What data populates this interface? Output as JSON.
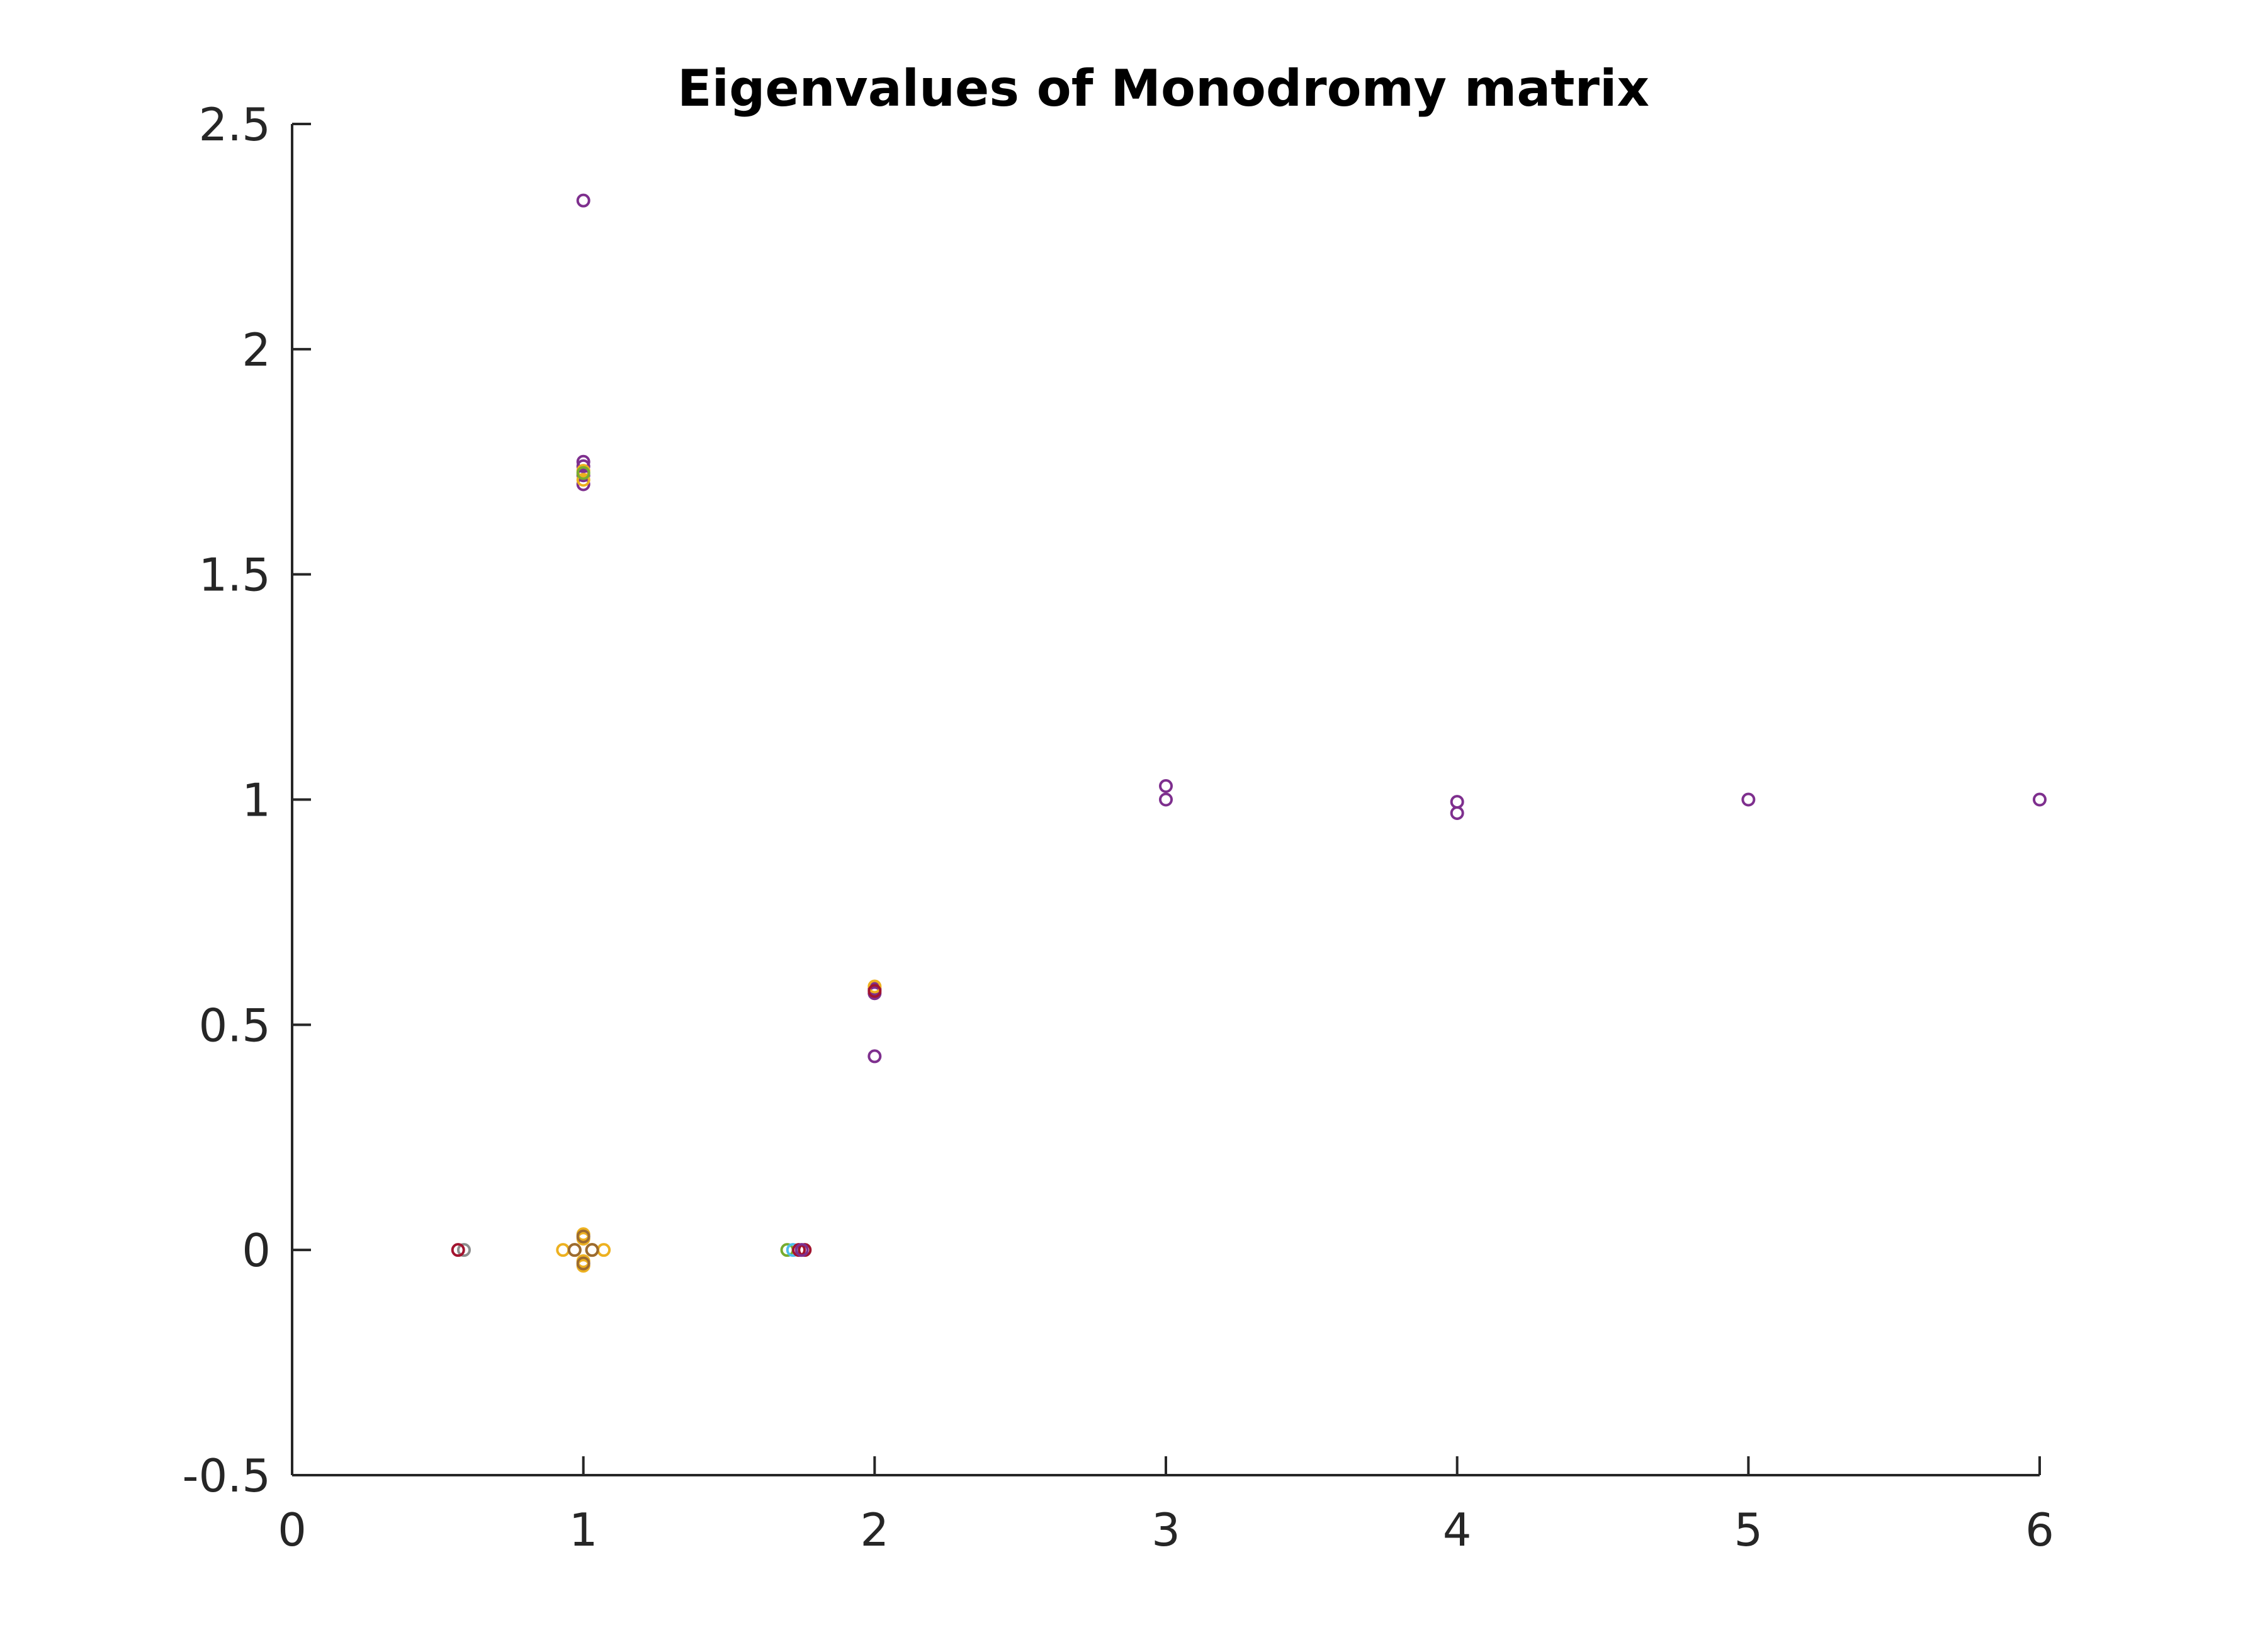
{
  "chart_data": {
    "type": "scatter",
    "title": "Eigenvalues of Monodromy matrix",
    "xlabel": "",
    "ylabel": "",
    "xlim": [
      0,
      6
    ],
    "ylim": [
      -0.5,
      2.5
    ],
    "grid": false,
    "legend": "none",
    "xticks": [
      "0",
      "1",
      "2",
      "3",
      "4",
      "5",
      "6"
    ],
    "yticks": [
      "-0.5",
      "0",
      "0.5",
      "1",
      "1.5",
      "2",
      "2.5"
    ],
    "colors": {
      "orange": "#EDB120",
      "purple": "#7E2F8E",
      "teal": "#77AC30",
      "cyan": "#4DBEEE",
      "red": "#A2142F",
      "gray": "#8c8c8c",
      "brown": "#9c6b30"
    },
    "series": [
      {
        "color": "#8c8c8c",
        "points": [
          [
            0.59,
            0
          ]
        ]
      },
      {
        "color": "#A2142F",
        "points": [
          [
            0.57,
            0
          ]
        ]
      },
      {
        "color": "#7E2F8E",
        "points": [
          [
            1,
            2.33
          ],
          [
            1,
            1.75
          ],
          [
            1,
            1.74
          ],
          [
            1,
            1.72
          ],
          [
            1,
            1.7
          ],
          [
            2,
            0.58
          ],
          [
            2,
            0.57
          ],
          [
            2,
            0.43
          ],
          [
            3,
            1.03
          ],
          [
            3,
            1.0
          ],
          [
            4,
            0.995
          ],
          [
            4,
            0.97
          ],
          [
            5,
            1.0
          ],
          [
            6,
            1.0
          ]
        ]
      },
      {
        "color": "#EDB120",
        "points": [
          [
            1,
            1.73
          ],
          [
            1,
            1.71
          ],
          [
            2,
            0.585
          ],
          [
            0.93,
            0
          ],
          [
            0.97,
            0
          ],
          [
            1.03,
            0
          ],
          [
            1.07,
            0
          ],
          [
            1,
            0.035
          ],
          [
            1,
            -0.035
          ],
          [
            1,
            0.025
          ],
          [
            1,
            -0.025
          ]
        ]
      },
      {
        "color": "#9c6b30",
        "points": [
          [
            1,
            0.03
          ],
          [
            1,
            -0.03
          ],
          [
            0.97,
            0
          ],
          [
            1.03,
            0
          ]
        ]
      },
      {
        "color": "#77AC30",
        "points": [
          [
            1.7,
            0
          ],
          [
            1,
            1.725
          ]
        ]
      },
      {
        "color": "#4DBEEE",
        "points": [
          [
            1.72,
            0
          ]
        ]
      },
      {
        "color": "#A2142F",
        "points": [
          [
            1.74,
            0
          ],
          [
            1.76,
            0
          ],
          [
            2,
            0.575
          ]
        ]
      },
      {
        "color": "#7E2F8E",
        "points": [
          [
            1.75,
            0
          ]
        ]
      }
    ]
  }
}
